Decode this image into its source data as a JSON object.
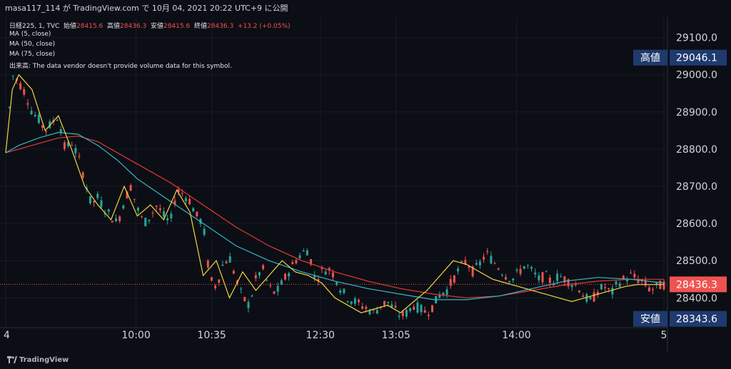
{
  "header": {
    "info": "masa117_114 が TradingView.com で 10月 04, 2021 20:22 UTC+9 に公開"
  },
  "legend": {
    "symbol": "日経225, 1, TVC",
    "open_label": "始値",
    "open_value": "28415.6",
    "high_label": "高値",
    "high_value": "28436.3",
    "low_label": "安値",
    "low_value": "28415.6",
    "close_label": "終値",
    "close_value": "28436.3",
    "change": "+13.2 (+0.05%)",
    "ma5": "MA (5, close)",
    "ma50": "MA (50, close)",
    "ma75": "MA (75, close)",
    "volume": "出来高: The data vendor doesn't provide volume data for this symbol."
  },
  "footer": {
    "brand": "TradingView"
  },
  "colors": {
    "background": "#0c0e15",
    "up": "#26a69a",
    "down": "#ef5350",
    "ma5": "#f0d640",
    "ma50": "#32b8c8",
    "ma75": "#e53935",
    "label_bg": "#1e3a6e",
    "text": "#d1d4dc"
  },
  "chart_data": {
    "type": "line",
    "price_axis": {
      "ticks": [
        "29100.0",
        "29000.0",
        "28900.0",
        "28800.0",
        "28700.0",
        "28600.0",
        "28500.0",
        "28400.0"
      ],
      "range": [
        28320,
        29155
      ]
    },
    "time_axis": {
      "ticks": [
        "4",
        "10:00",
        "10:35",
        "12:30",
        "13:05",
        "14:00",
        "5"
      ],
      "tick_positions": [
        0,
        19.8,
        31.3,
        47.8,
        59.3,
        77.6,
        100
      ]
    },
    "price_labels": {
      "high": {
        "label": "高値",
        "value": "29046.1",
        "price": 29046.1
      },
      "current": {
        "value": "28436.3",
        "price": 28436.3
      },
      "low": {
        "label": "安値",
        "value": "28343.6",
        "price": 28343.6
      }
    },
    "ma5": {
      "name": "MA (5, close)",
      "x": [
        0,
        1,
        2,
        4,
        6,
        8,
        10,
        12,
        14,
        16,
        18,
        20,
        22,
        24,
        26,
        28,
        30,
        32,
        34,
        36,
        38,
        40,
        42,
        44,
        46,
        48,
        50,
        52,
        54,
        56,
        58,
        60,
        62,
        64,
        66,
        68,
        70,
        72,
        74,
        76,
        78,
        80,
        82,
        84,
        86,
        88,
        90,
        92,
        94,
        96,
        98,
        100
      ],
      "y": [
        28790,
        28960,
        29000,
        28960,
        28850,
        28890,
        28800,
        28700,
        28650,
        28610,
        28700,
        28620,
        28650,
        28610,
        28690,
        28630,
        28460,
        28500,
        28400,
        28470,
        28420,
        28460,
        28500,
        28470,
        28460,
        28440,
        28400,
        28380,
        28360,
        28370,
        28380,
        28360,
        28390,
        28420,
        28460,
        28500,
        28490,
        28470,
        28450,
        28440,
        28430,
        28420,
        28410,
        28400,
        28390,
        28400,
        28410,
        28420,
        28430,
        28436,
        28436,
        28436
      ]
    },
    "ma50": {
      "name": "MA (50, close)",
      "x": [
        0,
        2,
        5,
        8,
        11,
        14,
        17,
        20,
        25,
        30,
        35,
        40,
        45,
        50,
        55,
        60,
        65,
        70,
        75,
        80,
        85,
        90,
        95,
        100
      ],
      "y": [
        28790,
        28810,
        28830,
        28845,
        28840,
        28810,
        28770,
        28720,
        28660,
        28600,
        28540,
        28500,
        28470,
        28445,
        28425,
        28410,
        28395,
        28395,
        28405,
        28425,
        28445,
        28455,
        28450,
        28440
      ]
    },
    "ma75": {
      "name": "MA (75, close)",
      "x": [
        0,
        2,
        5,
        8,
        11,
        14,
        17,
        20,
        25,
        30,
        35,
        40,
        45,
        50,
        55,
        60,
        65,
        70,
        75,
        80,
        85,
        90,
        95,
        100
      ],
      "y": [
        28790,
        28800,
        28815,
        28830,
        28835,
        28820,
        28790,
        28760,
        28710,
        28650,
        28590,
        28540,
        28500,
        28470,
        28445,
        28425,
        28410,
        28400,
        28405,
        28420,
        28435,
        28445,
        28450,
        28450
      ]
    },
    "close_path": {
      "x": [
        0,
        1,
        2,
        3,
        4,
        5,
        6,
        7,
        8,
        9,
        10,
        11,
        12,
        13,
        14,
        15,
        16,
        17,
        18,
        19,
        20,
        21,
        22,
        23,
        24,
        25,
        26,
        27,
        28,
        29,
        30,
        31,
        32,
        33,
        34,
        35,
        36,
        37,
        38,
        39,
        40,
        41,
        42,
        43,
        44,
        45,
        46,
        47,
        48,
        49,
        50,
        51,
        52,
        53,
        54,
        55,
        56,
        57,
        58,
        59,
        60,
        61,
        62,
        63,
        64,
        65,
        66,
        67,
        68,
        69,
        70,
        71,
        72,
        73,
        74,
        75,
        76,
        77,
        78,
        79,
        80,
        81,
        82,
        83,
        84,
        85,
        86,
        87,
        88,
        89,
        90,
        91,
        92,
        93,
        94,
        95,
        96,
        97,
        98,
        99,
        100
      ],
      "y": [
        28800,
        29000,
        28980,
        28950,
        28900,
        28880,
        28850,
        28870,
        28890,
        28800,
        28820,
        28780,
        28720,
        28650,
        28670,
        28640,
        28620,
        28600,
        28660,
        28700,
        28640,
        28600,
        28620,
        28650,
        28620,
        28600,
        28690,
        28680,
        28660,
        28620,
        28600,
        28450,
        28430,
        28490,
        28510,
        28450,
        28400,
        28380,
        28450,
        28480,
        28430,
        28410,
        28440,
        28470,
        28500,
        28520,
        28530,
        28450,
        28470,
        28480,
        28460,
        28420,
        28400,
        28390,
        28380,
        28370,
        28360,
        28380,
        28390,
        28370,
        28350,
        28360,
        28380,
        28370,
        28360,
        28380,
        28410,
        28420,
        28450,
        28480,
        28500,
        28470,
        28490,
        28520,
        28500,
        28480,
        28460,
        28450,
        28470,
        28490,
        28470,
        28450,
        28460,
        28440,
        28460,
        28450,
        28440,
        28430,
        28400,
        28390,
        28420,
        28430,
        28410,
        28440,
        28450,
        28460,
        28450,
        28440,
        28420,
        28430,
        28436
      ]
    }
  }
}
